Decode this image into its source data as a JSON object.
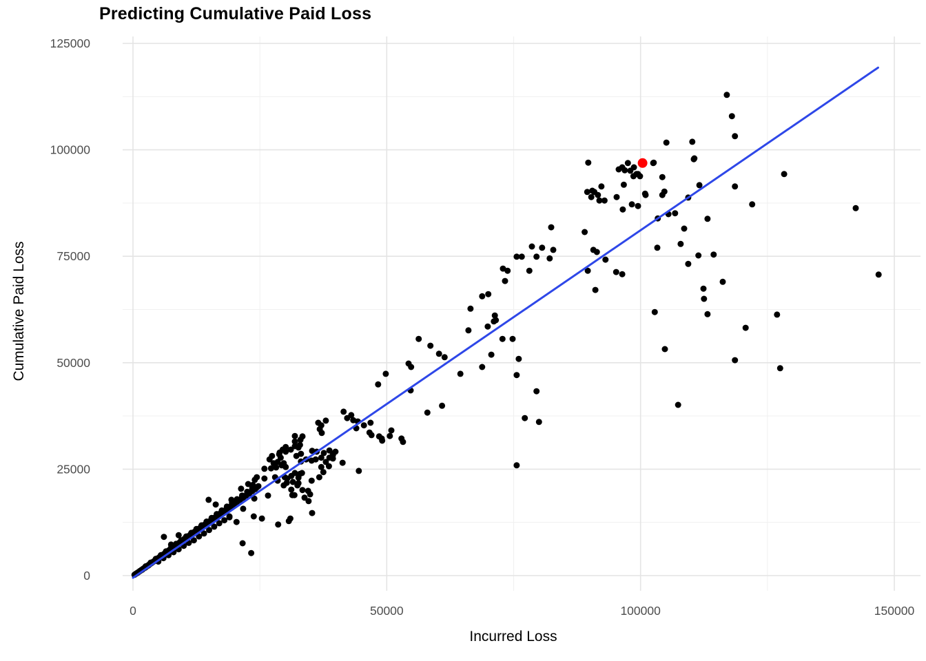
{
  "chart_data": {
    "type": "scatter",
    "title": "Predicting Cumulative Paid Loss",
    "xlabel": "Incurred Loss",
    "ylabel": "Cumulative Paid Loss",
    "x_ticks": [
      0,
      50000,
      100000,
      150000
    ],
    "y_ticks": [
      0,
      25000,
      50000,
      75000,
      100000,
      125000
    ],
    "x_minor_ticks": [
      25000,
      75000,
      125000
    ],
    "y_minor_ticks": [
      12500,
      37500,
      62500,
      87500,
      112500
    ],
    "xlim": [
      -2000,
      155200
    ],
    "ylim": [
      -3550,
      126600
    ],
    "grid": "major-and-minor",
    "legend_position": "none",
    "colors": {
      "point": "#000000",
      "highlight": "#ff0000",
      "trend": "#2e47e8",
      "grid_major": "#e4e4e4",
      "grid_minor": "#f1f1f1",
      "tick_text": "#4d4d4d",
      "background": "#ffffff"
    },
    "trend_line": {
      "x1": 0,
      "y1": -500,
      "x2": 146800,
      "y2": 119300
    },
    "highlight_point": {
      "x": 100400,
      "y": 96900
    },
    "points": [
      [
        89700,
        97000
      ],
      [
        95700,
        95400
      ],
      [
        96400,
        95900
      ],
      [
        96900,
        95200
      ],
      [
        97500,
        96900
      ],
      [
        98000,
        95100
      ],
      [
        98700,
        95900
      ],
      [
        99200,
        94300
      ],
      [
        99500,
        94300
      ],
      [
        98600,
        93800
      ],
      [
        96700,
        91800
      ],
      [
        89500,
        90100
      ],
      [
        90500,
        90400
      ],
      [
        91600,
        89400
      ],
      [
        92300,
        91400
      ],
      [
        91900,
        88100
      ],
      [
        92900,
        88100
      ],
      [
        95300,
        88900
      ],
      [
        98300,
        87200
      ],
      [
        99500,
        86800
      ],
      [
        96500,
        86000
      ],
      [
        100900,
        89700
      ],
      [
        102500,
        96900
      ],
      [
        105100,
        101700
      ],
      [
        110200,
        101900
      ],
      [
        118600,
        103200
      ],
      [
        117000,
        112900
      ],
      [
        118000,
        107900
      ],
      [
        110500,
        97800
      ],
      [
        104300,
        93600
      ],
      [
        99900,
        93800
      ],
      [
        104300,
        89400
      ],
      [
        90900,
        90100
      ],
      [
        90300,
        88900
      ],
      [
        101000,
        89400
      ],
      [
        111600,
        91700
      ],
      [
        118600,
        91400
      ],
      [
        122000,
        87200
      ],
      [
        109400,
        88800
      ],
      [
        104700,
        90200
      ],
      [
        142400,
        86300
      ],
      [
        128300,
        94300
      ],
      [
        110600,
        98000
      ],
      [
        102600,
        97000
      ],
      [
        103400,
        83900
      ],
      [
        105500,
        84900
      ],
      [
        106800,
        85100
      ],
      [
        113200,
        83800
      ],
      [
        108600,
        81500
      ],
      [
        103300,
        77000
      ],
      [
        107900,
        77900
      ],
      [
        111400,
        75200
      ],
      [
        114400,
        75400
      ],
      [
        109400,
        73200
      ],
      [
        116200,
        69000
      ],
      [
        112400,
        67400
      ],
      [
        112500,
        65000
      ],
      [
        102800,
        61900
      ],
      [
        113200,
        61400
      ],
      [
        126900,
        61300
      ],
      [
        120700,
        58200
      ],
      [
        104800,
        53200
      ],
      [
        118600,
        50600
      ],
      [
        127500,
        48700
      ],
      [
        107400,
        40100
      ],
      [
        146900,
        70700
      ],
      [
        82400,
        81800
      ],
      [
        89000,
        80700
      ],
      [
        78600,
        77300
      ],
      [
        80600,
        77000
      ],
      [
        82800,
        76500
      ],
      [
        79500,
        74900
      ],
      [
        75600,
        74900
      ],
      [
        76600,
        74900
      ],
      [
        82100,
        74500
      ],
      [
        90700,
        76500
      ],
      [
        91400,
        76000
      ],
      [
        93100,
        74200
      ],
      [
        72900,
        72100
      ],
      [
        73800,
        71600
      ],
      [
        78100,
        71600
      ],
      [
        73300,
        69200
      ],
      [
        89600,
        71600
      ],
      [
        95200,
        71300
      ],
      [
        96400,
        70800
      ],
      [
        68800,
        65600
      ],
      [
        70000,
        66100
      ],
      [
        66500,
        62700
      ],
      [
        91100,
        67100
      ],
      [
        71300,
        61100
      ],
      [
        71500,
        60000
      ],
      [
        69900,
        58500
      ],
      [
        66100,
        57600
      ],
      [
        56300,
        55600
      ],
      [
        58600,
        54000
      ],
      [
        60300,
        52100
      ],
      [
        61400,
        51300
      ],
      [
        54300,
        49800
      ],
      [
        54800,
        49000
      ],
      [
        68800,
        49000
      ],
      [
        49800,
        47400
      ],
      [
        64500,
        47400
      ],
      [
        48300,
        44900
      ],
      [
        54700,
        43500
      ],
      [
        72800,
        55600
      ],
      [
        74800,
        55600
      ],
      [
        70600,
        51900
      ],
      [
        76000,
        50900
      ],
      [
        75600,
        47100
      ],
      [
        79500,
        43300
      ],
      [
        60900,
        39900
      ],
      [
        58000,
        38300
      ],
      [
        77200,
        37000
      ],
      [
        80000,
        36100
      ],
      [
        75600,
        25900
      ],
      [
        71100,
        59700
      ],
      [
        19400,
        17800
      ],
      [
        21300,
        20400
      ],
      [
        22700,
        21500
      ],
      [
        23600,
        21300
      ],
      [
        24000,
        22500
      ],
      [
        24400,
        23100
      ],
      [
        24700,
        21000
      ],
      [
        21700,
        18300
      ],
      [
        19800,
        16300
      ],
      [
        21700,
        15700
      ],
      [
        23900,
        18100
      ],
      [
        25900,
        22800
      ],
      [
        27200,
        25200
      ],
      [
        27700,
        26400
      ],
      [
        28500,
        26700
      ],
      [
        29100,
        27700
      ],
      [
        28200,
        25400
      ],
      [
        29700,
        26400
      ],
      [
        30100,
        25500
      ],
      [
        26600,
        18800
      ],
      [
        25400,
        13400
      ],
      [
        28000,
        23100
      ],
      [
        28500,
        22300
      ],
      [
        29900,
        23100
      ],
      [
        30400,
        22800
      ],
      [
        29700,
        21200
      ],
      [
        31200,
        23400
      ],
      [
        31900,
        24100
      ],
      [
        31500,
        22000
      ],
      [
        32600,
        23000
      ],
      [
        33300,
        24100
      ],
      [
        32400,
        21200
      ],
      [
        33400,
        20100
      ],
      [
        34500,
        19900
      ],
      [
        34900,
        19100
      ],
      [
        33800,
        18300
      ],
      [
        31400,
        18900
      ],
      [
        35200,
        22300
      ],
      [
        36700,
        23100
      ],
      [
        37500,
        24300
      ],
      [
        37100,
        25500
      ],
      [
        38600,
        25700
      ],
      [
        38000,
        26700
      ],
      [
        39400,
        27500
      ],
      [
        37100,
        27700
      ],
      [
        36000,
        27300
      ],
      [
        35200,
        27000
      ],
      [
        34100,
        27300
      ],
      [
        32200,
        28100
      ],
      [
        33100,
        28600
      ],
      [
        30100,
        29100
      ],
      [
        31100,
        29600
      ],
      [
        31900,
        30400
      ],
      [
        32900,
        30700
      ],
      [
        30100,
        30200
      ],
      [
        29500,
        29600
      ],
      [
        28900,
        28900
      ],
      [
        27400,
        28100
      ],
      [
        26900,
        27300
      ],
      [
        25900,
        25100
      ],
      [
        31900,
        31500
      ],
      [
        33000,
        31900
      ],
      [
        33400,
        32700
      ],
      [
        31900,
        32800
      ],
      [
        36500,
        35900
      ],
      [
        37100,
        35300
      ],
      [
        36800,
        34400
      ],
      [
        37200,
        33500
      ],
      [
        38000,
        36400
      ],
      [
        41500,
        38500
      ],
      [
        42200,
        37000
      ],
      [
        43000,
        37700
      ],
      [
        43400,
        36500
      ],
      [
        44300,
        36200
      ],
      [
        44000,
        34600
      ],
      [
        45500,
        35300
      ],
      [
        46800,
        35900
      ],
      [
        46600,
        33600
      ],
      [
        47000,
        33000
      ],
      [
        48500,
        32700
      ],
      [
        49000,
        32200
      ],
      [
        50900,
        34100
      ],
      [
        50600,
        32800
      ],
      [
        52900,
        32200
      ],
      [
        53200,
        31400
      ],
      [
        38700,
        29400
      ],
      [
        39400,
        28600
      ],
      [
        39900,
        29100
      ],
      [
        44500,
        24600
      ],
      [
        28800,
        28500
      ],
      [
        35300,
        29300
      ],
      [
        36200,
        29100
      ],
      [
        37600,
        28800
      ],
      [
        38700,
        27700
      ],
      [
        39400,
        28300
      ],
      [
        41300,
        26500
      ],
      [
        29300,
        25900
      ],
      [
        32900,
        23900
      ],
      [
        30300,
        21800
      ],
      [
        32600,
        21700
      ],
      [
        31200,
        20200
      ],
      [
        31800,
        18900
      ],
      [
        34600,
        17500
      ],
      [
        35300,
        14700
      ],
      [
        30700,
        12800
      ],
      [
        28600,
        12000
      ],
      [
        49100,
        31700
      ],
      [
        32600,
        30100
      ],
      [
        33100,
        26800
      ],
      [
        14900,
        17800
      ],
      [
        16300,
        16700
      ],
      [
        19000,
        13700
      ],
      [
        20400,
        12600
      ],
      [
        23800,
        13900
      ],
      [
        31000,
        13400
      ],
      [
        21600,
        7600
      ],
      [
        23300,
        5300
      ],
      [
        9000,
        9500
      ],
      [
        10000,
        8200
      ],
      [
        7500,
        7300
      ],
      [
        6100,
        9100
      ],
      [
        300,
        200
      ],
      [
        500,
        380
      ],
      [
        650,
        500
      ],
      [
        800,
        610
      ],
      [
        950,
        700
      ],
      [
        1100,
        860
      ],
      [
        1250,
        950
      ],
      [
        1400,
        1120
      ],
      [
        1550,
        1200
      ],
      [
        1700,
        1360
      ],
      [
        1850,
        1400
      ],
      [
        2000,
        1620
      ],
      [
        2150,
        1700
      ],
      [
        2300,
        1860
      ],
      [
        2450,
        1900
      ],
      [
        2600,
        2120
      ],
      [
        2750,
        2200
      ],
      [
        2900,
        2360
      ],
      [
        3050,
        2400
      ],
      [
        3200,
        2620
      ],
      [
        3350,
        2700
      ],
      [
        3500,
        2860
      ],
      [
        3650,
        2950
      ],
      [
        3800,
        3120
      ],
      [
        3950,
        3200
      ],
      [
        4100,
        3370
      ],
      [
        4250,
        3450
      ],
      [
        4400,
        3630
      ],
      [
        4550,
        3700
      ],
      [
        4700,
        3890
      ],
      [
        4850,
        3950
      ],
      [
        5000,
        4140
      ],
      [
        5150,
        4200
      ],
      [
        5300,
        4400
      ],
      [
        5450,
        4480
      ],
      [
        5600,
        4660
      ],
      [
        5750,
        4700
      ],
      [
        5900,
        4920
      ],
      [
        6050,
        5000
      ],
      [
        6200,
        5170
      ],
      [
        6350,
        5250
      ],
      [
        6500,
        5430
      ],
      [
        6650,
        5500
      ],
      [
        6800,
        5690
      ],
      [
        6950,
        5750
      ],
      [
        7100,
        5960
      ],
      [
        7250,
        6000
      ],
      [
        7400,
        6220
      ],
      [
        7550,
        6300
      ],
      [
        7700,
        6480
      ],
      [
        7850,
        6550
      ],
      [
        8000,
        6740
      ],
      [
        8150,
        6800
      ],
      [
        8300,
        7010
      ],
      [
        8450,
        7100
      ],
      [
        8600,
        7270
      ],
      [
        8750,
        7350
      ],
      [
        8900,
        7540
      ],
      [
        9050,
        7600
      ],
      [
        9200,
        7800
      ],
      [
        9350,
        7900
      ],
      [
        9500,
        8070
      ],
      [
        9650,
        8150
      ],
      [
        9800,
        8330
      ],
      [
        9950,
        8400
      ],
      [
        10100,
        8600
      ],
      [
        10300,
        8700
      ],
      [
        10500,
        8930
      ],
      [
        10700,
        9000
      ],
      [
        10900,
        9260
      ],
      [
        11100,
        9350
      ],
      [
        11300,
        9600
      ],
      [
        11500,
        9700
      ],
      [
        11700,
        9930
      ],
      [
        11900,
        10000
      ],
      [
        12100,
        10270
      ],
      [
        12300,
        10350
      ],
      [
        12500,
        10600
      ],
      [
        12700,
        10700
      ],
      [
        12900,
        10960
      ],
      [
        13100,
        11050
      ],
      [
        13300,
        11290
      ],
      [
        13500,
        11400
      ],
      [
        13700,
        11630
      ],
      [
        13900,
        11700
      ],
      [
        14100,
        11970
      ],
      [
        14300,
        12050
      ],
      [
        14500,
        12300
      ],
      [
        14700,
        12400
      ],
      [
        14900,
        12650
      ],
      [
        15100,
        12700
      ],
      [
        15400,
        13070
      ],
      [
        15700,
        13200
      ],
      [
        16000,
        13580
      ],
      [
        16300,
        13700
      ],
      [
        16600,
        14090
      ],
      [
        16900,
        14200
      ],
      [
        17200,
        14600
      ],
      [
        17500,
        14700
      ],
      [
        17800,
        15110
      ],
      [
        18100,
        15200
      ],
      [
        18400,
        15620
      ],
      [
        18700,
        15750
      ],
      [
        19000,
        16130
      ],
      [
        19300,
        16250
      ],
      [
        19600,
        16640
      ],
      [
        19900,
        16750
      ],
      [
        20200,
        17150
      ],
      [
        20500,
        17300
      ],
      [
        20800,
        17660
      ],
      [
        21100,
        17800
      ],
      [
        21400,
        18160
      ],
      [
        21700,
        18300
      ],
      [
        22000,
        18680
      ],
      [
        22300,
        18800
      ],
      [
        22600,
        19190
      ],
      [
        22900,
        19300
      ],
      [
        23200,
        19700
      ],
      [
        23500,
        19850
      ],
      [
        23800,
        20200
      ],
      [
        24100,
        20350
      ],
      [
        24400,
        20710
      ],
      [
        2500,
        2180
      ],
      [
        4500,
        3950
      ],
      [
        6500,
        5700
      ],
      [
        8500,
        7450
      ],
      [
        10500,
        9200
      ],
      [
        12500,
        10950
      ],
      [
        14500,
        12700
      ],
      [
        16500,
        14450
      ],
      [
        18500,
        16200
      ],
      [
        20500,
        17950
      ],
      [
        22500,
        19700
      ],
      [
        5500,
        4800
      ],
      [
        9500,
        8300
      ],
      [
        13500,
        11800
      ],
      [
        17500,
        15300
      ],
      [
        21500,
        18800
      ],
      [
        3500,
        3050
      ],
      [
        7500,
        6550
      ],
      [
        11500,
        10050
      ],
      [
        15500,
        13550
      ],
      [
        19500,
        17050
      ],
      [
        23500,
        20550
      ],
      [
        5000,
        3300
      ],
      [
        7000,
        4800
      ],
      [
        9000,
        6200
      ],
      [
        11000,
        7700
      ],
      [
        13000,
        9200
      ],
      [
        15000,
        10700
      ],
      [
        17000,
        12300
      ],
      [
        19000,
        13900
      ],
      [
        12000,
        8300
      ],
      [
        16000,
        11500
      ],
      [
        8000,
        5500
      ],
      [
        10000,
        7000
      ],
      [
        14000,
        9900
      ],
      [
        18000,
        13000
      ],
      [
        6000,
        4100
      ]
    ]
  }
}
